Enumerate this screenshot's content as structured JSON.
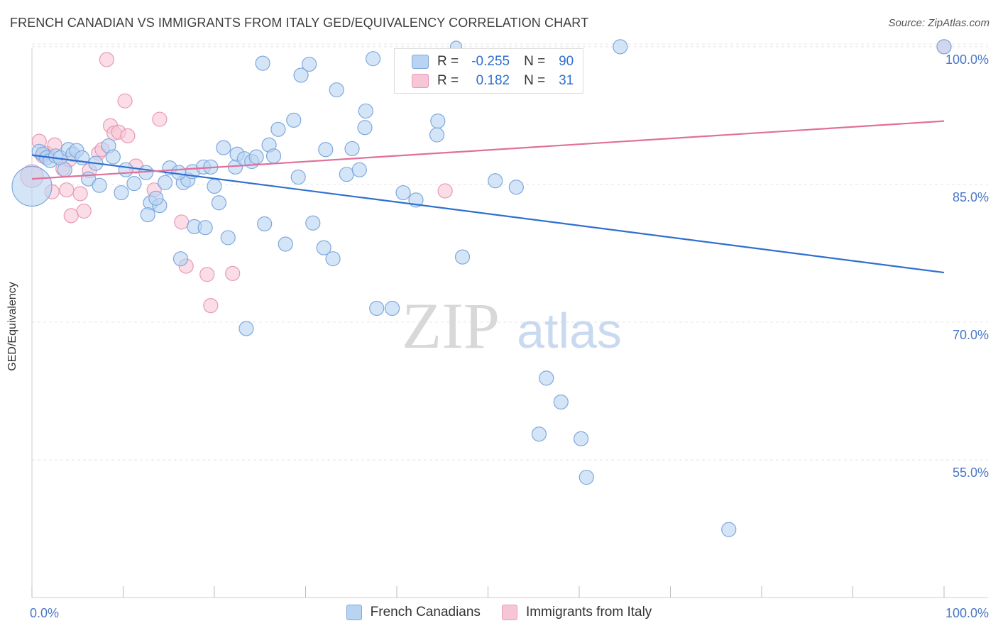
{
  "header": {
    "title": "FRENCH CANADIAN VS IMMIGRANTS FROM ITALY GED/EQUIVALENCY CORRELATION CHART",
    "source": "Source: ZipAtlas.com"
  },
  "watermark": {
    "zip": "ZIP",
    "atlas": "atlas"
  },
  "colors": {
    "blue_fill": "#b9d3f3",
    "blue_stroke": "#7ea8dc",
    "blue_line": "#2f6fd0",
    "pink_fill": "#f7c6d6",
    "pink_stroke": "#e79ab5",
    "pink_line": "#e0709a",
    "grid": "#e5e5e5",
    "axis_text": "#4a78c8"
  },
  "legend": {
    "r_label": "R =",
    "n_label": "N =",
    "rows": [
      {
        "r": "-0.255",
        "n": "90"
      },
      {
        "r": "0.182",
        "n": "31"
      }
    ]
  },
  "bottom_legend": [
    "French Canadians",
    "Immigrants from Italy"
  ],
  "chart_data": {
    "type": "scatter",
    "xlabel": "",
    "ylabel": "GED/Equivalency",
    "xlim": [
      0,
      100
    ],
    "ylim": [
      40,
      102
    ],
    "x_tick_labels": [
      "0.0%",
      "100.0%"
    ],
    "y_ticks": [
      55,
      70,
      85,
      100
    ],
    "y_tick_labels": [
      "55.0%",
      "70.0%",
      "85.0%",
      "100.0%"
    ],
    "grid": true,
    "legend_position": "top-center",
    "series": [
      {
        "name": "French Canadians",
        "trend": {
          "x": [
            0,
            100
          ],
          "y": [
            88.2,
            75.4
          ]
        },
        "points": [
          [
            0.0,
            84.8,
            28
          ],
          [
            0.8,
            88.6,
            10
          ],
          [
            1.2,
            88.3,
            10
          ],
          [
            1.6,
            87.9,
            10
          ],
          [
            2.0,
            87.6,
            10
          ],
          [
            2.6,
            88.1,
            10
          ],
          [
            3.1,
            87.9,
            10
          ],
          [
            4.0,
            88.8,
            10
          ],
          [
            4.5,
            88.3,
            10
          ],
          [
            4.9,
            88.7,
            10
          ],
          [
            3.6,
            86.6,
            10
          ],
          [
            5.5,
            87.9,
            10
          ],
          [
            7.0,
            87.3,
            10
          ],
          [
            8.4,
            89.2,
            10
          ],
          [
            6.2,
            85.6,
            10
          ],
          [
            7.4,
            84.9,
            10
          ],
          [
            9.8,
            84.1,
            10
          ],
          [
            11.2,
            85.1,
            10
          ],
          [
            12.5,
            86.3,
            10
          ],
          [
            15.1,
            86.8,
            10
          ],
          [
            14.6,
            85.2,
            10
          ],
          [
            16.6,
            85.2,
            10
          ],
          [
            17.1,
            85.5,
            10
          ],
          [
            17.6,
            86.4,
            10
          ],
          [
            18.8,
            86.9,
            10
          ],
          [
            19.6,
            86.9,
            10
          ],
          [
            8.9,
            88.0,
            10
          ],
          [
            10.3,
            86.6,
            10
          ],
          [
            13.0,
            83.0,
            10
          ],
          [
            12.7,
            81.7,
            10
          ],
          [
            14.0,
            82.7,
            10
          ],
          [
            13.6,
            83.5,
            10
          ],
          [
            16.3,
            76.9,
            10
          ],
          [
            17.8,
            80.4,
            10
          ],
          [
            19.0,
            80.3,
            10
          ],
          [
            20.0,
            84.8,
            10
          ],
          [
            20.5,
            83.0,
            10
          ],
          [
            21.5,
            79.2,
            10
          ],
          [
            21.0,
            89.0,
            10
          ],
          [
            22.3,
            86.9,
            10
          ],
          [
            22.5,
            88.3,
            10
          ],
          [
            23.3,
            87.8,
            10
          ],
          [
            24.1,
            87.5,
            10
          ],
          [
            24.6,
            88.0,
            10
          ],
          [
            25.3,
            98.2,
            10
          ],
          [
            25.5,
            80.7,
            10
          ],
          [
            26.0,
            89.3,
            10
          ],
          [
            26.5,
            88.1,
            10
          ],
          [
            27.0,
            91.0,
            10
          ],
          [
            27.8,
            78.5,
            10
          ],
          [
            28.7,
            92.0,
            10
          ],
          [
            29.2,
            85.8,
            10
          ],
          [
            29.5,
            96.9,
            10
          ],
          [
            30.4,
            98.1,
            10
          ],
          [
            30.8,
            80.8,
            10
          ],
          [
            32.0,
            78.1,
            10
          ],
          [
            32.2,
            88.8,
            10
          ],
          [
            33.0,
            76.9,
            10
          ],
          [
            33.4,
            95.3,
            10
          ],
          [
            34.5,
            86.1,
            10
          ],
          [
            35.1,
            88.9,
            10
          ],
          [
            35.9,
            86.6,
            10
          ],
          [
            36.5,
            91.2,
            10
          ],
          [
            36.6,
            93.0,
            10
          ],
          [
            37.4,
            98.7,
            10
          ],
          [
            37.8,
            71.5,
            10
          ],
          [
            39.5,
            71.5,
            10
          ],
          [
            40.7,
            84.1,
            10
          ],
          [
            42.1,
            83.3,
            10
          ],
          [
            44.5,
            91.9,
            10
          ],
          [
            44.4,
            90.4,
            10
          ],
          [
            47.2,
            77.1,
            10
          ],
          [
            50.8,
            85.4,
            10
          ],
          [
            53.1,
            84.7,
            10
          ],
          [
            56.4,
            63.9,
            10
          ],
          [
            58.0,
            61.3,
            10
          ],
          [
            55.6,
            57.8,
            10
          ],
          [
            60.2,
            57.3,
            10
          ],
          [
            60.8,
            53.1,
            10
          ],
          [
            64.5,
            100.0,
            10
          ],
          [
            76.4,
            47.4,
            10
          ],
          [
            100.0,
            100.0,
            10
          ],
          [
            23.5,
            69.3,
            10
          ],
          [
            16.1,
            86.3,
            10
          ],
          [
            46.5,
            100.0,
            8
          ]
        ]
      },
      {
        "name": "Immigrants from Italy",
        "trend": {
          "x": [
            0,
            100
          ],
          "y": [
            85.6,
            91.9
          ]
        },
        "points": [
          [
            0.0,
            85.9,
            16
          ],
          [
            0.8,
            89.7,
            10
          ],
          [
            1.2,
            88.1,
            10
          ],
          [
            1.6,
            88.4,
            10
          ],
          [
            2.5,
            89.3,
            10
          ],
          [
            2.2,
            84.2,
            10
          ],
          [
            3.4,
            86.7,
            10
          ],
          [
            3.8,
            84.4,
            10
          ],
          [
            4.3,
            81.6,
            10
          ],
          [
            5.3,
            84.0,
            10
          ],
          [
            5.7,
            82.1,
            10
          ],
          [
            6.3,
            86.5,
            10
          ],
          [
            7.3,
            88.4,
            10
          ],
          [
            7.7,
            88.8,
            10
          ],
          [
            8.2,
            98.6,
            10
          ],
          [
            8.6,
            91.4,
            10
          ],
          [
            9.0,
            90.6,
            10
          ],
          [
            9.5,
            90.7,
            10
          ],
          [
            10.2,
            94.1,
            10
          ],
          [
            10.5,
            90.3,
            10
          ],
          [
            11.4,
            87.0,
            10
          ],
          [
            13.4,
            84.4,
            10
          ],
          [
            14.0,
            92.1,
            10
          ],
          [
            16.4,
            80.9,
            10
          ],
          [
            16.9,
            76.1,
            10
          ],
          [
            19.2,
            75.2,
            10
          ],
          [
            19.6,
            71.8,
            10
          ],
          [
            22.0,
            75.3,
            10
          ],
          [
            4.1,
            87.7,
            10
          ],
          [
            45.3,
            84.3,
            10
          ],
          [
            100.0,
            100.0,
            10
          ]
        ]
      }
    ]
  }
}
